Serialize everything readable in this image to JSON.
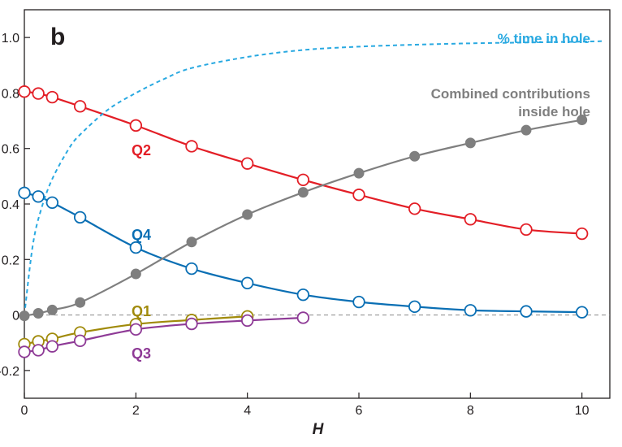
{
  "chart_data": {
    "type": "line",
    "panel_label": "b",
    "xlabel": "H",
    "ylabel": "",
    "xlim": [
      0,
      10.5
    ],
    "ylim": [
      -0.3,
      1.1
    ],
    "xticks": [
      0,
      2,
      4,
      6,
      8,
      10
    ],
    "yticks": [
      -0.2,
      0,
      0.2,
      0.4,
      0.6,
      0.8,
      1.0
    ],
    "ytick_labels": [
      "-0.2",
      "0",
      "0.2",
      "0.4",
      "0.6",
      "0.8",
      "1.0"
    ],
    "zero_reference_line": true,
    "grid": false,
    "legend": "inline labels",
    "series": [
      {
        "name": "Q2",
        "color": "#e31e26",
        "marker": "open-circle",
        "x": [
          0,
          0.25,
          0.5,
          1,
          2,
          3,
          4,
          5,
          6,
          7,
          8,
          9,
          10
        ],
        "y": [
          0.805,
          0.798,
          0.785,
          0.752,
          0.683,
          0.608,
          0.546,
          0.487,
          0.433,
          0.383,
          0.345,
          0.308,
          0.293
        ]
      },
      {
        "name": "Q4",
        "color": "#0a6fb4",
        "marker": "open-circle",
        "x": [
          0,
          0.25,
          0.5,
          1,
          2,
          3,
          4,
          5,
          6,
          7,
          8,
          9,
          10
        ],
        "y": [
          0.44,
          0.427,
          0.405,
          0.352,
          0.243,
          0.167,
          0.115,
          0.073,
          0.047,
          0.03,
          0.017,
          0.013,
          0.01
        ]
      },
      {
        "name": "Q1",
        "color": "#a08a0a",
        "marker": "open-circle",
        "x": [
          0,
          0.25,
          0.5,
          1,
          2,
          3,
          4
        ],
        "y": [
          -0.105,
          -0.095,
          -0.086,
          -0.063,
          -0.033,
          -0.018,
          -0.005
        ]
      },
      {
        "name": "Q3",
        "color": "#8e3a96",
        "marker": "open-circle",
        "x": [
          0,
          0.25,
          0.5,
          1,
          2,
          3,
          4,
          5
        ],
        "y": [
          -0.133,
          -0.127,
          -0.113,
          -0.093,
          -0.052,
          -0.032,
          -0.02,
          -0.01
        ]
      },
      {
        "name": "Combined contributions inside hole",
        "label_lines": [
          "Combined contributions",
          "inside hole"
        ],
        "color": "#7f7f7f",
        "marker": "filled-circle",
        "x": [
          0,
          0.25,
          0.5,
          1,
          2,
          3,
          4,
          5,
          6,
          7,
          8,
          9,
          10
        ],
        "y": [
          -0.003,
          0.006,
          0.018,
          0.045,
          0.148,
          0.263,
          0.362,
          0.442,
          0.511,
          0.572,
          0.62,
          0.666,
          0.703
        ]
      },
      {
        "name": "% time in hole",
        "color": "#29a9e1",
        "line_style": "dashed",
        "x": [
          0,
          0.15,
          0.3,
          0.5,
          0.8,
          1,
          1.5,
          2,
          2.5,
          3,
          4,
          5,
          6,
          7,
          8,
          9,
          10,
          10.4
        ],
        "y": [
          0.0,
          0.25,
          0.38,
          0.49,
          0.6,
          0.65,
          0.74,
          0.8,
          0.85,
          0.89,
          0.93,
          0.955,
          0.967,
          0.974,
          0.979,
          0.982,
          0.985,
          0.987
        ]
      }
    ]
  }
}
